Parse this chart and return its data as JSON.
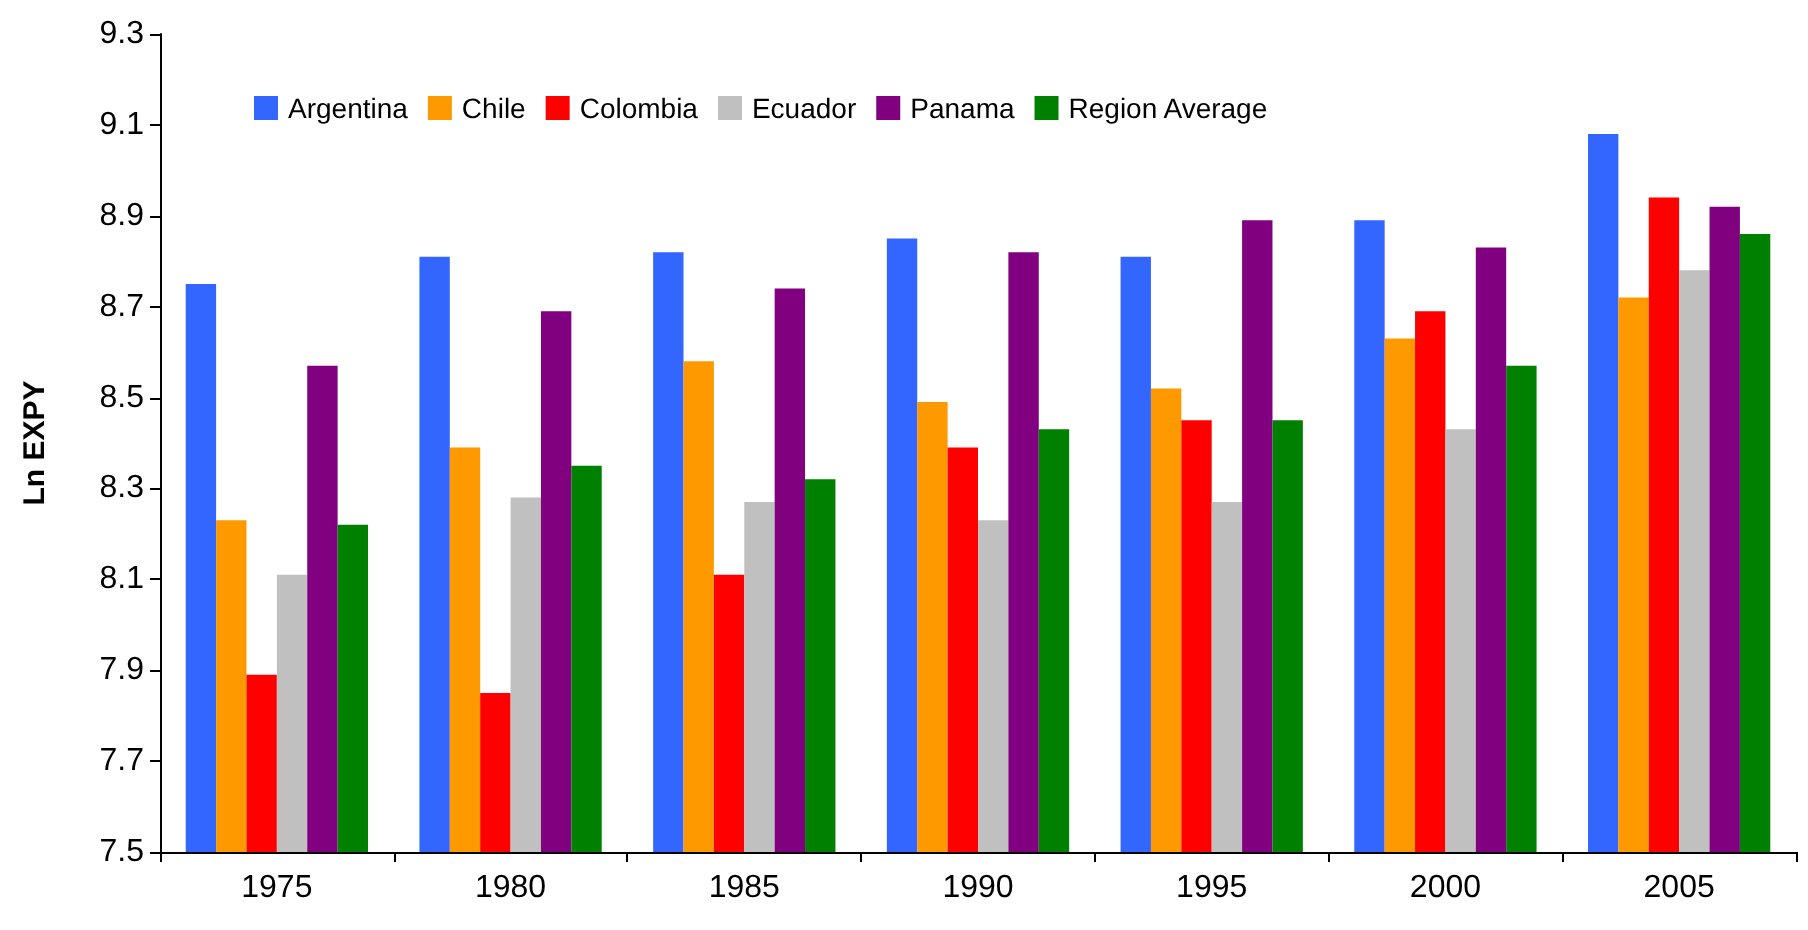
{
  "chart_data": {
    "type": "bar",
    "ylabel": "Ln EXPY",
    "categories": [
      "1975",
      "1980",
      "1985",
      "1990",
      "1995",
      "2000",
      "2005"
    ],
    "series": [
      {
        "name": "Argentina",
        "color": "#3366ff",
        "values": [
          8.75,
          8.81,
          8.82,
          8.85,
          8.81,
          8.89,
          9.08
        ]
      },
      {
        "name": "Chile",
        "color": "#ff9900",
        "values": [
          8.23,
          8.39,
          8.58,
          8.49,
          8.52,
          8.63,
          8.72
        ]
      },
      {
        "name": "Colombia",
        "color": "#ff0000",
        "values": [
          7.89,
          7.85,
          8.11,
          8.39,
          8.45,
          8.69,
          8.94
        ]
      },
      {
        "name": "Ecuador",
        "color": "#c0c0c0",
        "values": [
          8.11,
          8.28,
          8.27,
          8.23,
          8.27,
          8.43,
          8.78
        ]
      },
      {
        "name": "Panama",
        "color": "#800080",
        "values": [
          8.57,
          8.69,
          8.74,
          8.82,
          8.89,
          8.83,
          8.92
        ]
      },
      {
        "name": "Region Average",
        "color": "#008000",
        "values": [
          8.22,
          8.35,
          8.32,
          8.43,
          8.45,
          8.57,
          8.86
        ]
      }
    ],
    "ylim": [
      7.5,
      9.3
    ],
    "yticks": [
      7.5,
      7.7,
      7.9,
      8.1,
      8.3,
      8.5,
      8.7,
      8.9,
      9.1,
      9.3
    ],
    "grid": false,
    "legend": "top left"
  }
}
